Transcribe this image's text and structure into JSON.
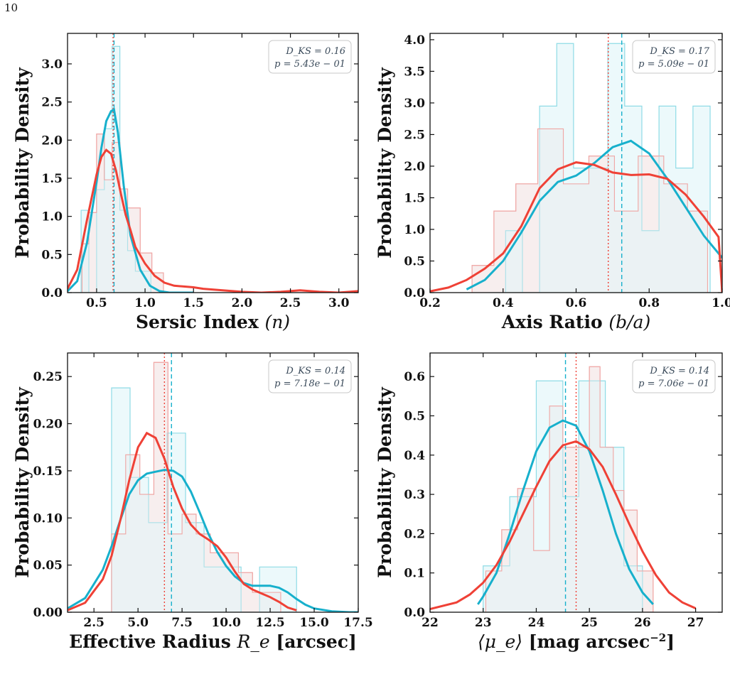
{
  "page_number": "10",
  "colors": {
    "cyan_line": "#17b0cc",
    "cyan_fill": "#e6f7f9",
    "cyan_edge": "#8fdbe6",
    "red_line": "#ef4136",
    "red_fill": "#fdeeee",
    "red_edge": "#f0a8a6",
    "overlap_fill": "#ebedee"
  },
  "chart_data": [
    {
      "id": "sersic",
      "type": "histogram+kde",
      "xlabel_bold": "Sersic Index",
      "xlabel_math": "(n)",
      "ylabel": "Probability Density",
      "xlim": [
        0.2,
        3.2
      ],
      "ylim": [
        0,
        3.4
      ],
      "xticks": [
        "0.5",
        "1.0",
        "1.5",
        "2.0",
        "2.5",
        "3.0"
      ],
      "xtick_values": [
        0.5,
        1.0,
        1.5,
        2.0,
        2.5,
        3.0
      ],
      "yticks": [
        "0.0",
        "0.5",
        "1.0",
        "1.5",
        "2.0",
        "2.5",
        "3.0"
      ],
      "ytick_values": [
        0,
        0.5,
        1.0,
        1.5,
        2.0,
        2.5,
        3.0
      ],
      "stats": {
        "dks": "D_KS = 0.16",
        "p": "p = 5.43e − 01"
      },
      "median_cyan": 0.68,
      "median_red": 0.67,
      "hist_cyan": {
        "edges": [
          0.26,
          0.34,
          0.42,
          0.5,
          0.58,
          0.66,
          0.74,
          0.82,
          0.9,
          0.98,
          1.06
        ],
        "values": [
          0.0,
          1.08,
          0.0,
          1.35,
          2.15,
          3.23,
          1.08,
          0.55,
          0.28,
          0.28
        ]
      },
      "hist_red": {
        "edges": [
          0.28,
          0.35,
          0.42,
          0.5,
          0.58,
          0.66,
          0.74,
          0.82,
          0.95,
          1.07,
          1.19
        ],
        "values": [
          0.0,
          0.64,
          1.05,
          2.08,
          1.48,
          1.97,
          1.36,
          1.11,
          0.52,
          0.26
        ]
      },
      "kde_cyan": {
        "x": [
          0.2,
          0.3,
          0.4,
          0.5,
          0.55,
          0.6,
          0.65,
          0.68,
          0.72,
          0.78,
          0.85,
          0.95,
          1.05,
          1.15,
          1.25,
          1.35,
          1.5
        ],
        "y": [
          0.02,
          0.15,
          0.65,
          1.45,
          1.9,
          2.25,
          2.38,
          2.4,
          2.1,
          1.4,
          0.75,
          0.3,
          0.09,
          0.02,
          0.0,
          0.0,
          0.0
        ]
      },
      "kde_red": {
        "x": [
          0.2,
          0.3,
          0.4,
          0.5,
          0.55,
          0.6,
          0.65,
          0.7,
          0.75,
          0.8,
          0.85,
          0.9,
          1.0,
          1.1,
          1.2,
          1.3,
          1.4,
          1.5,
          1.6,
          1.8,
          2.0,
          2.2,
          2.4,
          2.6,
          2.8,
          3.0,
          3.2
        ],
        "y": [
          0.05,
          0.3,
          0.95,
          1.55,
          1.78,
          1.87,
          1.82,
          1.6,
          1.3,
          1.02,
          0.82,
          0.6,
          0.38,
          0.22,
          0.13,
          0.09,
          0.08,
          0.07,
          0.05,
          0.03,
          0.01,
          0.0,
          0.01,
          0.03,
          0.01,
          0.0,
          0.02
        ]
      }
    },
    {
      "id": "axis_ratio",
      "type": "histogram+kde",
      "xlabel_bold": "Axis Ratio",
      "xlabel_math": "(b/a)",
      "ylabel": "Probability Density",
      "xlim": [
        0.2,
        1.0
      ],
      "ylim": [
        0,
        4.1
      ],
      "xticks": [
        "0.2",
        "0.4",
        "0.6",
        "0.8",
        "1.0"
      ],
      "xtick_values": [
        0.2,
        0.4,
        0.6,
        0.8,
        1.0
      ],
      "yticks": [
        "0.0",
        "0.5",
        "1.0",
        "1.5",
        "2.0",
        "2.5",
        "3.0",
        "3.5",
        "4.0"
      ],
      "ytick_values": [
        0,
        0.5,
        1.0,
        1.5,
        2.0,
        2.5,
        3.0,
        3.5,
        4.0
      ],
      "stats": {
        "dks": "D_KS = 0.17",
        "p": "p = 5.09e − 01"
      },
      "median_cyan": 0.725,
      "median_red": 0.688,
      "hist_cyan": {
        "edges": [
          0.36,
          0.407,
          0.453,
          0.5,
          0.547,
          0.593,
          0.64,
          0.687,
          0.733,
          0.78,
          0.827,
          0.873,
          0.92,
          0.967
        ],
        "values": [
          0.0,
          0.98,
          0.0,
          2.95,
          3.94,
          1.97,
          1.97,
          3.94,
          2.95,
          0.98,
          2.95,
          1.97,
          2.95
        ]
      },
      "hist_red": {
        "edges": [
          0.315,
          0.375,
          0.435,
          0.495,
          0.565,
          0.635,
          0.705,
          0.77,
          0.84,
          0.905,
          0.96
        ],
        "values": [
          0.43,
          1.29,
          1.72,
          2.59,
          1.72,
          2.16,
          1.29,
          2.16,
          1.72,
          1.29
        ]
      },
      "kde_cyan": {
        "x": [
          0.3,
          0.35,
          0.4,
          0.45,
          0.5,
          0.55,
          0.6,
          0.65,
          0.7,
          0.75,
          0.8,
          0.85,
          0.9,
          0.95,
          1.0
        ],
        "y": [
          0.05,
          0.2,
          0.5,
          0.95,
          1.45,
          1.75,
          1.85,
          2.05,
          2.3,
          2.4,
          2.2,
          1.8,
          1.35,
          0.9,
          0.55
        ]
      },
      "kde_red": {
        "x": [
          0.2,
          0.25,
          0.3,
          0.35,
          0.4,
          0.45,
          0.5,
          0.55,
          0.6,
          0.65,
          0.7,
          0.75,
          0.8,
          0.85,
          0.9,
          0.95,
          0.99,
          1.0
        ],
        "y": [
          0.02,
          0.08,
          0.2,
          0.38,
          0.62,
          1.05,
          1.65,
          1.95,
          2.06,
          2.02,
          1.9,
          1.86,
          1.87,
          1.8,
          1.55,
          1.2,
          0.88,
          0.0
        ]
      }
    },
    {
      "id": "effective_radius",
      "type": "histogram+kde",
      "xlabel_bold": "Effective Radius",
      "xlabel_math": "R_e",
      "xlabel_bold_suffix": "[arcsec]",
      "ylabel": "Probability Density",
      "xlim": [
        1.0,
        17.5
      ],
      "ylim": [
        0,
        0.275
      ],
      "xticks": [
        "2.5",
        "5.0",
        "7.5",
        "10.0",
        "12.5",
        "15.0",
        "17.5"
      ],
      "xtick_values": [
        2.5,
        5.0,
        7.5,
        10.0,
        12.5,
        15.0,
        17.5
      ],
      "yticks": [
        "0.00",
        "0.05",
        "0.10",
        "0.15",
        "0.20",
        "0.25"
      ],
      "ytick_values": [
        0,
        0.05,
        0.1,
        0.15,
        0.2,
        0.25
      ],
      "stats": {
        "dks": "D_KS = 0.14",
        "p": "p = 7.18e − 01"
      },
      "median_cyan": 6.9,
      "median_red": 6.5,
      "hist_cyan": {
        "edges": [
          3.5,
          4.55,
          5.6,
          6.65,
          7.7,
          8.75,
          9.8,
          10.85,
          11.9,
          12.95,
          14.0
        ],
        "values": [
          0.238,
          0.143,
          0.095,
          0.19,
          0.095,
          0.048,
          0.048,
          0.0,
          0.048,
          0.048
        ]
      },
      "hist_red": {
        "edges": [
          3.5,
          4.3,
          5.1,
          5.9,
          6.7,
          7.5,
          8.3,
          9.1,
          9.9,
          10.7,
          11.5,
          12.3,
          13.1
        ],
        "values": [
          0.083,
          0.167,
          0.125,
          0.265,
          0.083,
          0.104,
          0.083,
          0.063,
          0.063,
          0.042,
          0.021,
          0.021
        ]
      },
      "kde_cyan": {
        "x": [
          1.0,
          2.0,
          3.0,
          3.5,
          4.0,
          4.5,
          5.0,
          5.5,
          6.0,
          6.5,
          7.0,
          7.5,
          8.0,
          8.5,
          9.0,
          9.5,
          10.0,
          10.5,
          11.0,
          11.5,
          12.0,
          12.5,
          13.0,
          13.5,
          14.0,
          14.5,
          15.0,
          16.0,
          17.0,
          17.5
        ],
        "y": [
          0.004,
          0.015,
          0.045,
          0.07,
          0.098,
          0.125,
          0.14,
          0.147,
          0.149,
          0.151,
          0.15,
          0.144,
          0.128,
          0.106,
          0.083,
          0.064,
          0.049,
          0.038,
          0.031,
          0.028,
          0.028,
          0.028,
          0.026,
          0.021,
          0.014,
          0.008,
          0.004,
          0.001,
          0.0,
          0.0
        ]
      },
      "kde_red": {
        "x": [
          1.0,
          2.0,
          3.0,
          3.5,
          4.0,
          4.5,
          5.0,
          5.5,
          6.0,
          6.5,
          7.0,
          7.5,
          8.0,
          8.5,
          9.0,
          9.5,
          10.0,
          10.5,
          11.0,
          11.5,
          12.0,
          12.5,
          13.0,
          13.5,
          14.0
        ],
        "y": [
          0.002,
          0.01,
          0.035,
          0.06,
          0.098,
          0.14,
          0.175,
          0.19,
          0.185,
          0.163,
          0.133,
          0.11,
          0.093,
          0.083,
          0.077,
          0.07,
          0.058,
          0.043,
          0.03,
          0.024,
          0.02,
          0.016,
          0.011,
          0.005,
          0.002
        ]
      }
    },
    {
      "id": "surface_brightness",
      "type": "histogram+kde",
      "xlabel_math": "⟨μ_e⟩",
      "xlabel_bold_suffix": "[mag arcsec",
      "xlabel_sup": "−2",
      "xlabel_close": "]",
      "ylabel": "Probability Density",
      "xlim": [
        22.0,
        27.5
      ],
      "ylim": [
        0,
        0.66
      ],
      "xticks": [
        "22",
        "23",
        "24",
        "25",
        "26",
        "27"
      ],
      "xtick_values": [
        22,
        23,
        24,
        25,
        26,
        27
      ],
      "yticks": [
        "0.0",
        "0.1",
        "0.2",
        "0.3",
        "0.4",
        "0.5",
        "0.6"
      ],
      "ytick_values": [
        0,
        0.1,
        0.2,
        0.3,
        0.4,
        0.5,
        0.6
      ],
      "stats": {
        "dks": "D_KS = 0.14",
        "p": "p = 7.06e − 01"
      },
      "median_cyan": 24.55,
      "median_red": 24.75,
      "hist_cyan": {
        "edges": [
          23.0,
          23.5,
          24.0,
          24.5,
          24.8,
          25.3,
          25.65,
          26.0
        ],
        "values": [
          0.118,
          0.294,
          0.589,
          0.294,
          0.589,
          0.42,
          0.118
        ]
      },
      "hist_red": {
        "edges": [
          23.05,
          23.35,
          23.65,
          23.95,
          24.25,
          24.5,
          24.8,
          25.0,
          25.2,
          25.45,
          25.65,
          25.9,
          26.2
        ],
        "values": [
          0.105,
          0.21,
          0.315,
          0.157,
          0.525,
          0.42,
          0.42,
          0.625,
          0.42,
          0.31,
          0.26,
          0.105
        ]
      },
      "kde_cyan": {
        "x": [
          22.9,
          23.0,
          23.25,
          23.5,
          23.75,
          24.0,
          24.25,
          24.5,
          24.75,
          25.0,
          25.25,
          25.5,
          25.75,
          26.0,
          26.2
        ],
        "y": [
          0.02,
          0.04,
          0.1,
          0.2,
          0.31,
          0.41,
          0.47,
          0.488,
          0.475,
          0.41,
          0.31,
          0.2,
          0.11,
          0.05,
          0.02
        ]
      },
      "kde_red": {
        "x": [
          22.0,
          22.5,
          22.75,
          23.0,
          23.25,
          23.5,
          23.75,
          24.0,
          24.25,
          24.5,
          24.75,
          25.0,
          25.25,
          25.5,
          25.75,
          26.0,
          26.25,
          26.5,
          26.75,
          27.0
        ],
        "y": [
          0.008,
          0.025,
          0.045,
          0.075,
          0.12,
          0.18,
          0.25,
          0.32,
          0.385,
          0.425,
          0.435,
          0.415,
          0.37,
          0.3,
          0.225,
          0.155,
          0.095,
          0.05,
          0.025,
          0.01
        ]
      }
    }
  ]
}
